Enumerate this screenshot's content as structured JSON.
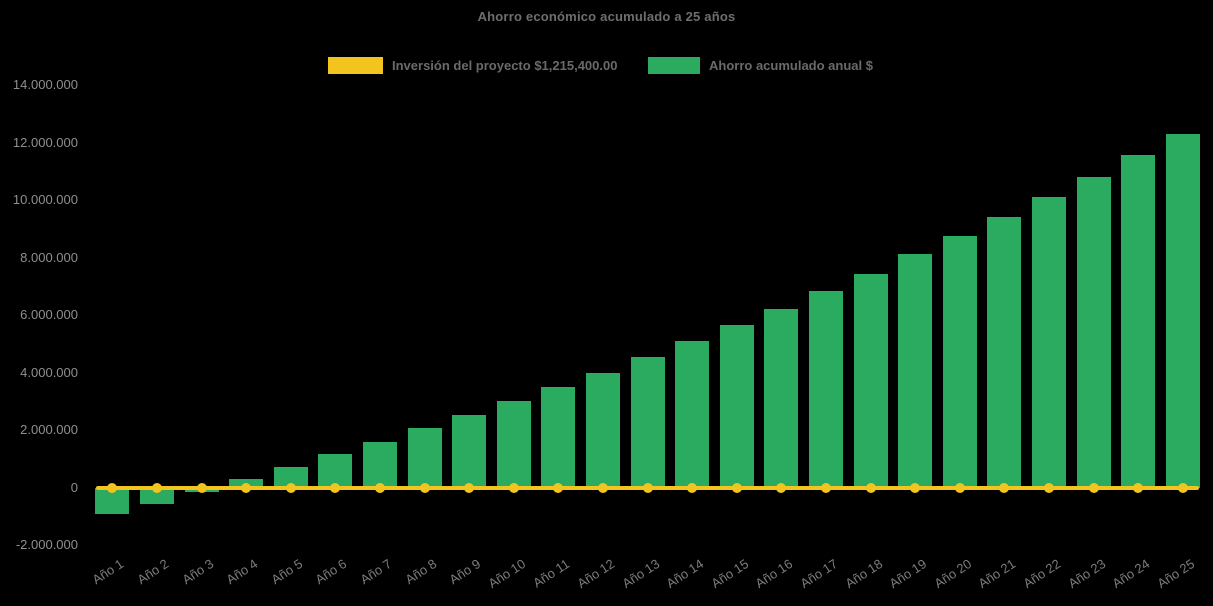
{
  "window": {
    "background": "#000000"
  },
  "chart_data": {
    "type": "bar",
    "title": "Ahorro económico acumulado a 25 años",
    "categories": [
      "Año 1",
      "Año 2",
      "Año 3",
      "Año 4",
      "Año 5",
      "Año 6",
      "Año 7",
      "Año 8",
      "Año 9",
      "Año 10",
      "Año 11",
      "Año 12",
      "Año 13",
      "Año 14",
      "Año 15",
      "Año 16",
      "Año 17",
      "Año 18",
      "Año 19",
      "Año 20",
      "Año 21",
      "Año 22",
      "Año 23",
      "Año 24",
      "Año 25"
    ],
    "series": [
      {
        "name": "Inversión del proyecto $1,215,400.00",
        "type": "line",
        "color": "#f2c41d",
        "markers": true,
        "plotted_at_value": 0
      },
      {
        "name": "Ahorro acumulado anual $",
        "type": "bar",
        "color": "#2aab5f",
        "values": [
          -900000,
          -540000,
          -150000,
          300000,
          710000,
          1150000,
          1600000,
          2060000,
          2510000,
          3000000,
          3490000,
          3990000,
          4530000,
          5090000,
          5650000,
          6210000,
          6840000,
          7440000,
          8110000,
          8740000,
          9400000,
          10100000,
          10800000,
          11580000,
          12300000
        ]
      }
    ],
    "y_axis": {
      "min": -2000000,
      "max": 14000000,
      "tick_step": 2000000,
      "ticks": [
        {
          "value": 14000000,
          "label": "14.000.000"
        },
        {
          "value": 12000000,
          "label": "12.000.000"
        },
        {
          "value": 10000000,
          "label": "10.000.000"
        },
        {
          "value": 8000000,
          "label": "8.000.000"
        },
        {
          "value": 6000000,
          "label": "6.000.000"
        },
        {
          "value": 4000000,
          "label": "4.000.000"
        },
        {
          "value": 2000000,
          "label": "2.000.000"
        },
        {
          "value": 0,
          "label": "0"
        },
        {
          "value": -2000000,
          "label": "-2.000.000"
        }
      ]
    },
    "legend_position": "top",
    "gridlines": false,
    "text_colors": {
      "title": "#6e6e6e",
      "legend": "#6a6a6a",
      "y_ticks": "#8f8f8f",
      "x_ticks": "#7c7c7c"
    }
  }
}
